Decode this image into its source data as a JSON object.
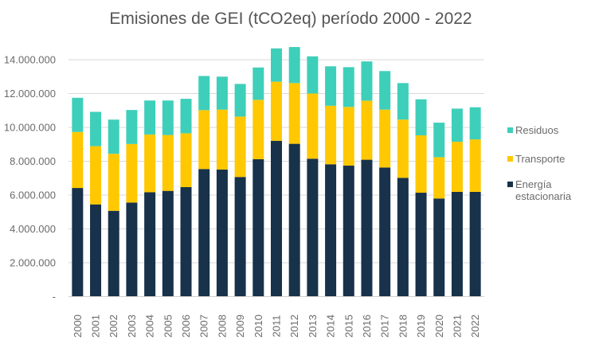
{
  "chart_data": {
    "type": "bar",
    "stacked": true,
    "title": "Emisiones de GEI (tCO2eq) período 2000 - 2022",
    "xlabel": "",
    "ylabel": "",
    "ylim": [
      0,
      15000000
    ],
    "yticks": [
      0,
      2000000,
      4000000,
      6000000,
      8000000,
      10000000,
      12000000,
      14000000
    ],
    "ytick_labels": [
      "-",
      "2.000.000",
      "4.000.000",
      "6.000.000",
      "8.000.000",
      "10.000.000",
      "12.000.000",
      "14.000.000"
    ],
    "grid": true,
    "legend_position": "right",
    "categories": [
      "2000",
      "2001",
      "2002",
      "2003",
      "2004",
      "2005",
      "2006",
      "2007",
      "2008",
      "2009",
      "2010",
      "2011",
      "2012",
      "2013",
      "2014",
      "2015",
      "2016",
      "2017",
      "2018",
      "2019",
      "2020",
      "2021",
      "2022"
    ],
    "series": [
      {
        "name": "Energía estacionaria",
        "color": "#17324a",
        "values": [
          6420000,
          5450000,
          5070000,
          5560000,
          6170000,
          6250000,
          6470000,
          7540000,
          7510000,
          7070000,
          8120000,
          9210000,
          9030000,
          8150000,
          7820000,
          7740000,
          8090000,
          7630000,
          7020000,
          6140000,
          5800000,
          6190000,
          6190000
        ]
      },
      {
        "name": "Transporte",
        "color": "#ffc800",
        "values": [
          3310000,
          3440000,
          3370000,
          3460000,
          3410000,
          3300000,
          3180000,
          3480000,
          3540000,
          3570000,
          3510000,
          3490000,
          3590000,
          3850000,
          3460000,
          3470000,
          3490000,
          3420000,
          3440000,
          3390000,
          2440000,
          2960000,
          3100000
        ]
      },
      {
        "name": "Residuos",
        "color": "#3ecfba",
        "values": [
          2020000,
          2030000,
          2020000,
          2010000,
          2010000,
          2040000,
          2040000,
          2020000,
          1950000,
          1930000,
          1910000,
          1970000,
          2130000,
          2200000,
          2330000,
          2350000,
          2320000,
          2280000,
          2160000,
          2130000,
          2040000,
          1960000,
          1900000
        ]
      }
    ]
  },
  "legend": {
    "items": [
      {
        "label_lines": [
          "Residuos"
        ],
        "color": "#3ecfba"
      },
      {
        "label_lines": [
          "Transporte"
        ],
        "color": "#ffc800"
      },
      {
        "label_lines": [
          "Energía",
          "estacionaria"
        ],
        "color": "#17324a"
      }
    ]
  }
}
